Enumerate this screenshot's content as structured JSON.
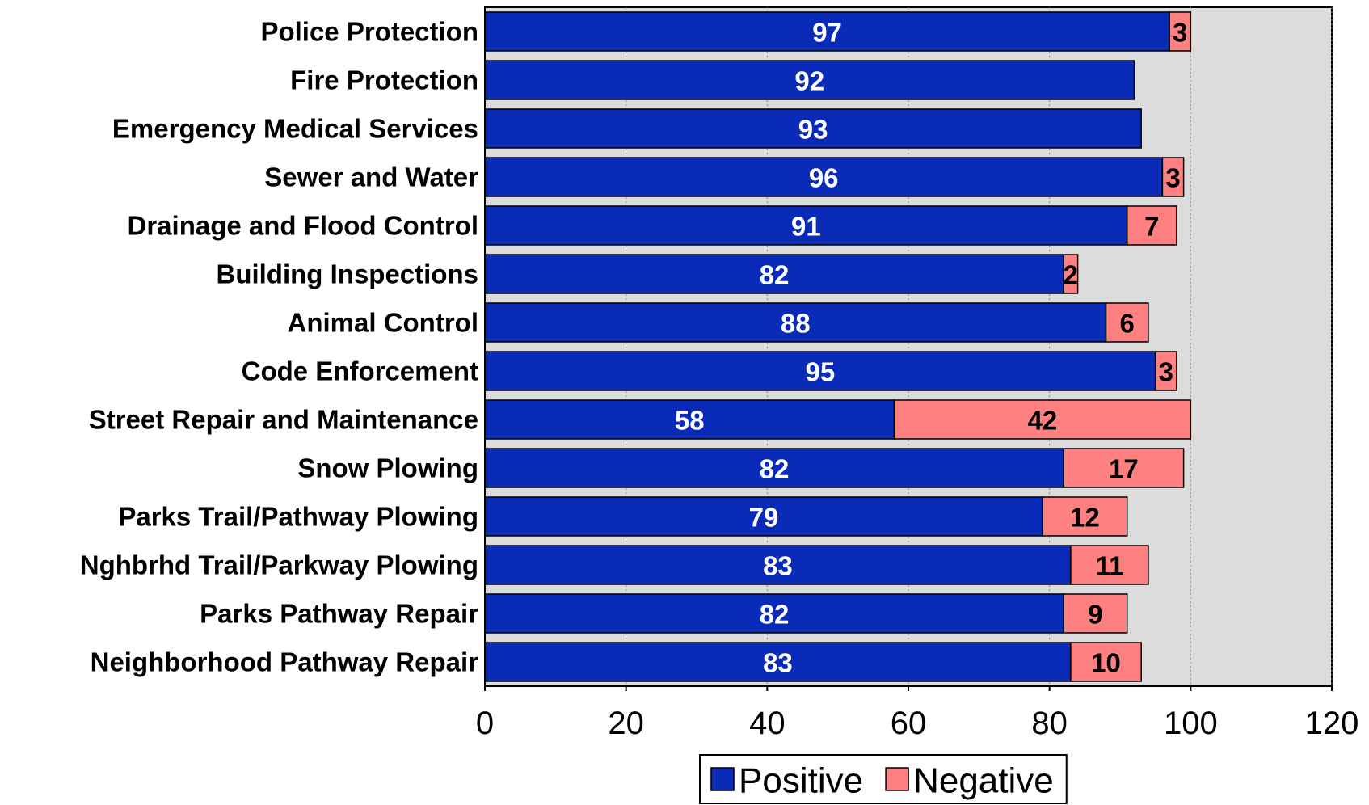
{
  "chart_data": {
    "type": "stacked-barh",
    "categories": [
      "Police Protection",
      "Fire Protection",
      "Emergency Medical Services",
      "Sewer and Water",
      "Drainage and Flood Control",
      "Building Inspections",
      "Animal Control",
      "Code Enforcement",
      "Street Repair and Maintenance",
      "Snow Plowing",
      "Parks Trail/Pathway Plowing",
      "Nghbrhd Trail/Parkway Plowing",
      "Parks Pathway Repair",
      "Neighborhood Pathway Repair"
    ],
    "series": [
      {
        "name": "Positive",
        "color": "#0a2bb8",
        "label_color": "#ffffff",
        "values": [
          97,
          92,
          93,
          96,
          91,
          82,
          88,
          95,
          58,
          82,
          79,
          83,
          82,
          83
        ]
      },
      {
        "name": "Negative",
        "color": "#ff8080",
        "label_color": "#000000",
        "values": [
          3,
          null,
          null,
          3,
          7,
          2,
          6,
          3,
          42,
          17,
          12,
          11,
          9,
          10
        ]
      }
    ],
    "xlim": [
      0,
      120
    ],
    "xticks": [
      0,
      20,
      40,
      60,
      80,
      100,
      120
    ],
    "grid": true,
    "legend": "bottom",
    "plot_background": "#dcdcdc"
  }
}
